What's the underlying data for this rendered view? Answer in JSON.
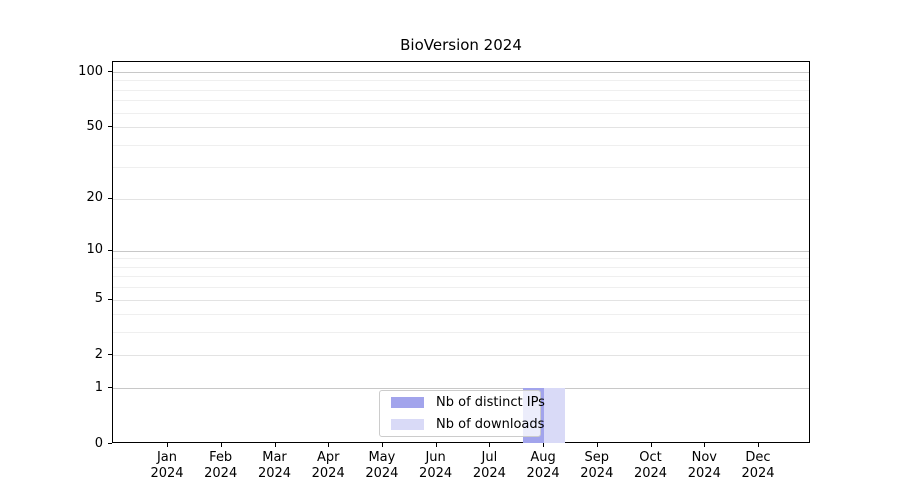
{
  "title": "BioVersion 2024",
  "legend": {
    "entries": [
      {
        "label": "Nb of distinct IPs",
        "color": "#a2a4ec"
      },
      {
        "label": "Nb of downloads",
        "color": "#d9daf7"
      }
    ],
    "position": "lower center"
  },
  "colors": {
    "distinct_ips": "#a2a4ec",
    "downloads": "#d9daf7",
    "grid_decade": "#c8c8c8",
    "grid_major": "#e3e3e3",
    "grid_minor": "#efefef",
    "frame": "#000000"
  },
  "chart_data": {
    "type": "bar",
    "title": "BioVersion 2024",
    "categories": [
      "Jan 2024",
      "Feb 2024",
      "Mar 2024",
      "Apr 2024",
      "May 2024",
      "Jun 2024",
      "Jul 2024",
      "Aug 2024",
      "Sep 2024",
      "Oct 2024",
      "Nov 2024",
      "Dec 2024"
    ],
    "series": [
      {
        "name": "Nb of distinct IPs",
        "color": "#a2a4ec",
        "values": [
          0,
          0,
          0,
          0,
          0,
          0,
          0,
          1,
          0,
          0,
          0,
          0
        ]
      },
      {
        "name": "Nb of downloads",
        "color": "#d9daf7",
        "values": [
          0,
          0,
          0,
          0,
          0,
          0,
          0,
          1,
          0,
          0,
          0,
          0
        ]
      }
    ],
    "xlabel": "",
    "ylabel": "",
    "yscale": "log1p",
    "ylim": [
      0,
      113
    ],
    "yticks": [
      0,
      1,
      2,
      5,
      10,
      20,
      50,
      100
    ],
    "yticks_decade": [
      1,
      10,
      100
    ],
    "yticks_minor": [
      3,
      4,
      6,
      7,
      8,
      9,
      30,
      40,
      60,
      70,
      80,
      90
    ],
    "grid": "horizontal",
    "legend_position": "lower center"
  }
}
